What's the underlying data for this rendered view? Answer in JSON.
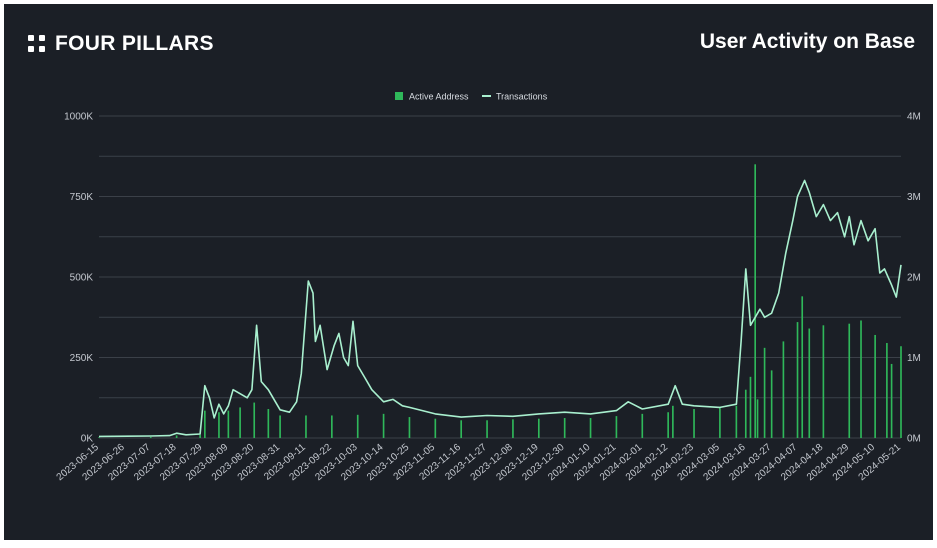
{
  "brand": {
    "name": "FOUR PILLARS",
    "icon": "four-dots-icon"
  },
  "colors": {
    "background": "#1b1f26",
    "bar": "#2fb85a",
    "line": "#a9f0cf",
    "grid": "#3b4048",
    "text": "#c4c8cf"
  },
  "chart_data": {
    "type": "bar+line",
    "title": "User Activity on Base",
    "legend": [
      "Active Address",
      "Transactions"
    ],
    "legend_position": "top-center",
    "grid": true,
    "x_tick_labels": [
      "2023-06-15",
      "2023-06-26",
      "2023-07-07",
      "2023-07-18",
      "2023-07-29",
      "2023-08-09",
      "2023-08-20",
      "2023-08-31",
      "2023-09-11",
      "2023-09-22",
      "2023-10-03",
      "2023-10-14",
      "2023-10-25",
      "2023-11-05",
      "2023-11-16",
      "2023-11-27",
      "2023-12-08",
      "2023-12-19",
      "2023-12-30",
      "2024-01-10",
      "2024-01-21",
      "2024-02-01",
      "2024-02-12",
      "2024-02-23",
      "2024-03-05",
      "2024-03-16",
      "2024-03-27",
      "2024-04-07",
      "2024-04-18",
      "2024-04-29",
      "2024-05-10",
      "2024-05-21"
    ],
    "y_left": {
      "label": "",
      "min": 0,
      "max": 1000000,
      "ticks": [
        "0K",
        "250K",
        "500K",
        "750K",
        "1000K"
      ]
    },
    "y_right": {
      "label": "",
      "min": 0,
      "max": 4000000,
      "ticks": [
        "0M",
        "1M",
        "2M",
        "3M",
        "4M"
      ]
    },
    "series": [
      {
        "name": "Active Address",
        "kind": "bar",
        "axis": "left",
        "points": [
          [
            "2023-06-15",
            2000
          ],
          [
            "2023-07-07",
            3000
          ],
          [
            "2023-07-18",
            8000
          ],
          [
            "2023-07-28",
            10000
          ],
          [
            "2023-07-30",
            85000
          ],
          [
            "2023-08-05",
            80000
          ],
          [
            "2023-08-09",
            85000
          ],
          [
            "2023-08-14",
            95000
          ],
          [
            "2023-08-20",
            110000
          ],
          [
            "2023-08-26",
            90000
          ],
          [
            "2023-08-31",
            70000
          ],
          [
            "2023-09-11",
            70000
          ],
          [
            "2023-09-22",
            70000
          ],
          [
            "2023-10-03",
            72000
          ],
          [
            "2023-10-14",
            75000
          ],
          [
            "2023-10-25",
            65000
          ],
          [
            "2023-11-05",
            60000
          ],
          [
            "2023-11-16",
            55000
          ],
          [
            "2023-11-27",
            55000
          ],
          [
            "2023-12-08",
            58000
          ],
          [
            "2023-12-19",
            60000
          ],
          [
            "2023-12-30",
            62000
          ],
          [
            "2024-01-10",
            62000
          ],
          [
            "2024-01-21",
            68000
          ],
          [
            "2024-02-01",
            75000
          ],
          [
            "2024-02-12",
            80000
          ],
          [
            "2024-02-14",
            100000
          ],
          [
            "2024-02-23",
            90000
          ],
          [
            "2024-03-05",
            95000
          ],
          [
            "2024-03-12",
            100000
          ],
          [
            "2024-03-16",
            150000
          ],
          [
            "2024-03-18",
            190000
          ],
          [
            "2024-03-20",
            850000
          ],
          [
            "2024-03-21",
            120000
          ],
          [
            "2024-03-24",
            280000
          ],
          [
            "2024-03-27",
            210000
          ],
          [
            "2024-04-01",
            300000
          ],
          [
            "2024-04-07",
            360000
          ],
          [
            "2024-04-09",
            440000
          ],
          [
            "2024-04-12",
            340000
          ],
          [
            "2024-04-18",
            350000
          ],
          [
            "2024-04-29",
            355000
          ],
          [
            "2024-05-04",
            365000
          ],
          [
            "2024-05-10",
            320000
          ],
          [
            "2024-05-15",
            295000
          ],
          [
            "2024-05-17",
            230000
          ],
          [
            "2024-05-21",
            285000
          ]
        ]
      },
      {
        "name": "Transactions",
        "kind": "line",
        "axis": "right",
        "points": [
          [
            "2023-06-15",
            20000
          ],
          [
            "2023-07-07",
            25000
          ],
          [
            "2023-07-15",
            30000
          ],
          [
            "2023-07-18",
            60000
          ],
          [
            "2023-07-22",
            40000
          ],
          [
            "2023-07-28",
            50000
          ],
          [
            "2023-07-30",
            650000
          ],
          [
            "2023-08-01",
            500000
          ],
          [
            "2023-08-03",
            250000
          ],
          [
            "2023-08-05",
            420000
          ],
          [
            "2023-08-07",
            300000
          ],
          [
            "2023-08-09",
            400000
          ],
          [
            "2023-08-11",
            600000
          ],
          [
            "2023-08-14",
            550000
          ],
          [
            "2023-08-17",
            500000
          ],
          [
            "2023-08-19",
            600000
          ],
          [
            "2023-08-21",
            1400000
          ],
          [
            "2023-08-23",
            700000
          ],
          [
            "2023-08-26",
            600000
          ],
          [
            "2023-08-29",
            450000
          ],
          [
            "2023-08-31",
            350000
          ],
          [
            "2023-09-04",
            320000
          ],
          [
            "2023-09-07",
            450000
          ],
          [
            "2023-09-09",
            800000
          ],
          [
            "2023-09-12",
            1950000
          ],
          [
            "2023-09-14",
            1800000
          ],
          [
            "2023-09-15",
            1200000
          ],
          [
            "2023-09-17",
            1400000
          ],
          [
            "2023-09-20",
            850000
          ],
          [
            "2023-09-23",
            1150000
          ],
          [
            "2023-09-25",
            1300000
          ],
          [
            "2023-09-27",
            1000000
          ],
          [
            "2023-09-29",
            900000
          ],
          [
            "2023-10-01",
            1450000
          ],
          [
            "2023-10-03",
            900000
          ],
          [
            "2023-10-06",
            750000
          ],
          [
            "2023-10-09",
            600000
          ],
          [
            "2023-10-14",
            450000
          ],
          [
            "2023-10-18",
            480000
          ],
          [
            "2023-10-22",
            400000
          ],
          [
            "2023-10-25",
            380000
          ],
          [
            "2023-11-05",
            300000
          ],
          [
            "2023-11-16",
            260000
          ],
          [
            "2023-11-27",
            280000
          ],
          [
            "2023-12-08",
            270000
          ],
          [
            "2023-12-19",
            300000
          ],
          [
            "2023-12-30",
            320000
          ],
          [
            "2024-01-10",
            300000
          ],
          [
            "2024-01-21",
            340000
          ],
          [
            "2024-01-26",
            450000
          ],
          [
            "2024-02-01",
            360000
          ],
          [
            "2024-02-12",
            420000
          ],
          [
            "2024-02-15",
            650000
          ],
          [
            "2024-02-18",
            420000
          ],
          [
            "2024-02-23",
            400000
          ],
          [
            "2024-03-05",
            380000
          ],
          [
            "2024-03-12",
            420000
          ],
          [
            "2024-03-14",
            1200000
          ],
          [
            "2024-03-16",
            2100000
          ],
          [
            "2024-03-18",
            1400000
          ],
          [
            "2024-03-20",
            1500000
          ],
          [
            "2024-03-22",
            1600000
          ],
          [
            "2024-03-24",
            1500000
          ],
          [
            "2024-03-27",
            1550000
          ],
          [
            "2024-03-30",
            1800000
          ],
          [
            "2024-04-02",
            2300000
          ],
          [
            "2024-04-05",
            2700000
          ],
          [
            "2024-04-07",
            3000000
          ],
          [
            "2024-04-10",
            3200000
          ],
          [
            "2024-04-12",
            3050000
          ],
          [
            "2024-04-15",
            2750000
          ],
          [
            "2024-04-18",
            2900000
          ],
          [
            "2024-04-21",
            2700000
          ],
          [
            "2024-04-24",
            2800000
          ],
          [
            "2024-04-27",
            2500000
          ],
          [
            "2024-04-29",
            2750000
          ],
          [
            "2024-05-01",
            2400000
          ],
          [
            "2024-05-04",
            2700000
          ],
          [
            "2024-05-07",
            2450000
          ],
          [
            "2024-05-10",
            2600000
          ],
          [
            "2024-05-12",
            2050000
          ],
          [
            "2024-05-14",
            2100000
          ],
          [
            "2024-05-17",
            1900000
          ],
          [
            "2024-05-19",
            1750000
          ],
          [
            "2024-05-21",
            2150000
          ]
        ]
      }
    ]
  }
}
